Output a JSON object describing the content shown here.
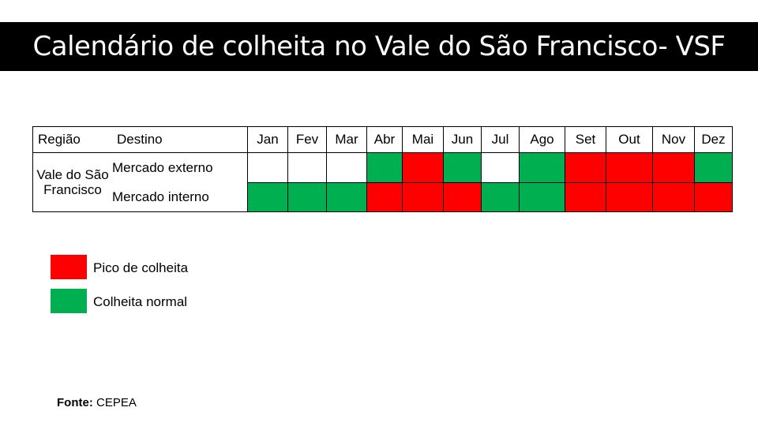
{
  "title": "Calendário de colheita no Vale do São Francisco- VSF",
  "table": {
    "header_regiao": "Região",
    "header_destino": "Destino",
    "months": [
      "Jan",
      "Fev",
      "Mar",
      "Abr",
      "Mai",
      "Jun",
      "Jul",
      "Ago",
      "Set",
      "Out",
      "Nov",
      "Dez"
    ],
    "region": "Vale do São Francisco",
    "rows": [
      {
        "destino": "Mercado externo",
        "status": [
          "none",
          "none",
          "none",
          "normal",
          "pico",
          "normal",
          "none",
          "normal",
          "pico",
          "pico",
          "pico",
          "normal"
        ]
      },
      {
        "destino": "Mercado interno",
        "status": [
          "normal",
          "normal",
          "normal",
          "pico",
          "pico",
          "pico",
          "normal",
          "normal",
          "pico",
          "pico",
          "pico",
          "pico"
        ]
      }
    ]
  },
  "colors": {
    "pico": "#ff0000",
    "normal": "#00b050",
    "none": "#ffffff"
  },
  "legend": {
    "pico": "Pico de colheita",
    "normal": "Colheita normal"
  },
  "fonte": {
    "label": "Fonte:",
    "value": "CEPEA"
  }
}
